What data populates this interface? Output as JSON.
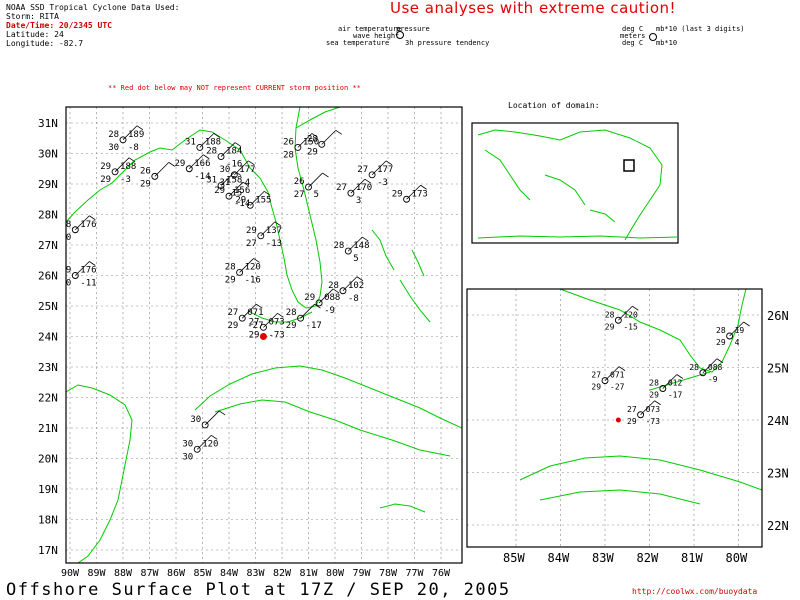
{
  "header": {
    "line1": "NOAA SSD Tropical Cyclone Data Used:",
    "storm": "Storm: RITA",
    "datetime": "Date/Time: 20/2345 UTC",
    "latitude": "Latitude: 24",
    "longitude": "Longitude: -82.7",
    "caution": "Use analyses with extreme caution!"
  },
  "station_key": {
    "air_temperature": "air temperature",
    "wave_height": "wave height",
    "sea_temperature": "sea temperature",
    "pressure": "pressure",
    "pressure_tendency": "3h pressure tendency",
    "degc1": "deg C",
    "mb10_last3": "mb*10 (last 3 digits)",
    "meters": "meters",
    "degc2": "deg C",
    "mb10": "mb*10"
  },
  "warning": "** Red dot below may NOT represent CURRENT storm position **",
  "inset_title": "Location of domain:",
  "footer": "Offshore Surface Plot at 17Z / SEP 20, 2005",
  "url": "http://coolwx.com/buoydata",
  "colors": {
    "coast": "#00cc00",
    "storm": "#e00000",
    "grid": "#888888",
    "text": "#000000"
  },
  "main_map": {
    "lat_labels": [
      "31N",
      "30N",
      "29N",
      "28N",
      "27N",
      "26N",
      "25N",
      "24N",
      "23N",
      "22N",
      "21N",
      "20N",
      "19N",
      "18N",
      "17N"
    ],
    "lon_labels": [
      "90W",
      "89W",
      "88W",
      "87W",
      "86W",
      "85W",
      "84W",
      "83W",
      "82W",
      "81W",
      "80W",
      "79W",
      "78W",
      "77W",
      "76W"
    ],
    "storm_position": {
      "lat": 24,
      "lon": -82.7
    }
  },
  "zoom_map": {
    "lat_labels": [
      "26N",
      "25N",
      "24N",
      "23N",
      "22N"
    ],
    "lon_labels": [
      "85W",
      "84W",
      "83W",
      "82W",
      "81W",
      "80W"
    ]
  },
  "stations_main": [
    {
      "lat": 30.45,
      "lon": -88.0,
      "t": "28",
      "p": "189",
      "dt": "30",
      "tend": "-8"
    },
    {
      "lat": 30.2,
      "lon": -85.1,
      "t": "31",
      "p": "188",
      "dt": "",
      "tend": ""
    },
    {
      "lat": 29.9,
      "lon": -84.3,
      "t": "28",
      "p": "184",
      "dt": "",
      "tend": "-16"
    },
    {
      "lat": 29.4,
      "lon": -88.3,
      "t": "29",
      "p": "188",
      "dt": "29",
      "tend": "-3"
    },
    {
      "lat": 29.25,
      "lon": -86.8,
      "t": "26",
      "p": "",
      "dt": "29",
      "tend": ""
    },
    {
      "lat": 29.5,
      "lon": -85.5,
      "t": "29",
      "p": "166",
      "dt": "",
      "tend": "-14"
    },
    {
      "lat": 29.3,
      "lon": -83.8,
      "t": "30",
      "p": "177",
      "dt": "31",
      "tend": "-4"
    },
    {
      "lat": 28.95,
      "lon": -84.3,
      "t": "31",
      "p": "158",
      "dt": "",
      "tend": "-15"
    },
    {
      "lat": 28.6,
      "lon": -84.0,
      "t": "29",
      "p": "156",
      "dt": "",
      "tend": "-14"
    },
    {
      "lat": 28.3,
      "lon": -83.2,
      "t": "29",
      "p": "155",
      "dt": "",
      "tend": ""
    },
    {
      "lat": 30.2,
      "lon": -81.4,
      "t": "26",
      "p": "150",
      "dt": "28",
      "tend": ""
    },
    {
      "lat": 30.3,
      "lon": -80.5,
      "t": "28",
      "p": "",
      "dt": "29",
      "tend": ""
    },
    {
      "lat": 28.9,
      "lon": -81.0,
      "t": "26",
      "p": "",
      "dt": "27",
      "tend": "5"
    },
    {
      "lat": 28.7,
      "lon": -79.4,
      "t": "27",
      "p": "170",
      "dt": "",
      "tend": "3"
    },
    {
      "lat": 29.3,
      "lon": -78.6,
      "t": "27",
      "p": "177",
      "dt": "",
      "tend": "-3"
    },
    {
      "lat": 28.5,
      "lon": -77.3,
      "t": "29",
      "p": "173",
      "dt": "",
      "tend": ""
    },
    {
      "lat": 27.3,
      "lon": -82.8,
      "t": "29",
      "p": "137",
      "dt": "27",
      "tend": "-13"
    },
    {
      "lat": 26.8,
      "lon": -79.5,
      "t": "28",
      "p": "148",
      "dt": "",
      "tend": "5"
    },
    {
      "lat": 26.1,
      "lon": -83.6,
      "t": "28",
      "p": "120",
      "dt": "29",
      "tend": "-16"
    },
    {
      "lat": 25.5,
      "lon": -79.7,
      "t": "28",
      "p": "102",
      "dt": "",
      "tend": "-8"
    },
    {
      "lat": 25.1,
      "lon": -80.6,
      "t": "29",
      "p": "088",
      "dt": "",
      "tend": "-9"
    },
    {
      "lat": 24.6,
      "lon": -83.5,
      "t": "27",
      "p": "071",
      "dt": "29",
      "tend": "-27"
    },
    {
      "lat": 24.3,
      "lon": -82.7,
      "t": "27",
      "p": "073",
      "dt": "29",
      "tend": "-73"
    },
    {
      "lat": 24.6,
      "lon": -81.3,
      "t": "28",
      "p": "",
      "dt": "29",
      "tend": "-17"
    },
    {
      "lat": 26.0,
      "lon": -89.8,
      "t": "29",
      "p": "176",
      "dt": "30",
      "tend": "-11"
    },
    {
      "lat": 27.5,
      "lon": -89.8,
      "t": "8",
      "p": "176",
      "dt": "0",
      "tend": ""
    },
    {
      "lat": 20.3,
      "lon": -85.2,
      "t": "30",
      "p": "120",
      "dt": "30",
      "tend": ""
    },
    {
      "lat": 21.1,
      "lon": -84.9,
      "t": "30",
      "p": "",
      "dt": "",
      "tend": ""
    }
  ],
  "stations_zoom": [
    {
      "lat": 25.9,
      "lon": -82.7,
      "t": "28",
      "p": "120",
      "dt": "29",
      "tend": "-15"
    },
    {
      "lat": 25.6,
      "lon": -80.2,
      "t": "28",
      "p": "19",
      "dt": "29",
      "tend": "4"
    },
    {
      "lat": 24.9,
      "lon": -80.8,
      "t": "28",
      "p": "088",
      "dt": "",
      "tend": "-9"
    },
    {
      "lat": 24.75,
      "lon": -83.0,
      "t": "27",
      "p": "071",
      "dt": "29",
      "tend": "-27"
    },
    {
      "lat": 24.6,
      "lon": -81.7,
      "t": "28",
      "p": "012",
      "dt": "29",
      "tend": "-17"
    },
    {
      "lat": 24.1,
      "lon": -82.2,
      "t": "27",
      "p": "073",
      "dt": "29",
      "tend": "-73"
    }
  ]
}
